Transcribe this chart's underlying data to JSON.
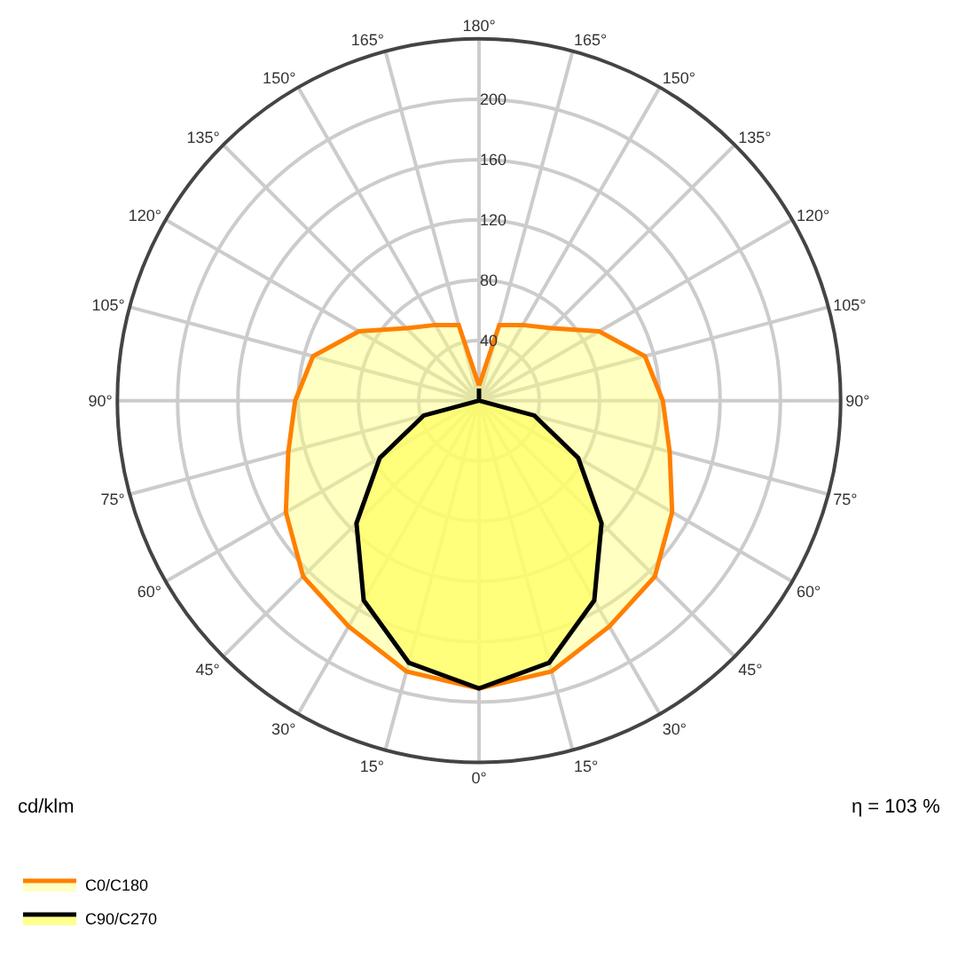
{
  "chart_data": {
    "type": "radar",
    "categories": [
      "180°",
      "165°",
      "150°",
      "135°",
      "120°",
      "105°",
      "90°",
      "75°",
      "60°",
      "45°",
      "30°",
      "15°",
      "0°",
      "15°",
      "30°",
      "45°",
      "60°",
      "75°",
      "90°",
      "105°",
      "120°",
      "135°",
      "150°",
      "165°"
    ],
    "series": [
      {
        "name": "C0/C180",
        "color": "#ff8000",
        "values": [
          10,
          52,
          58,
          68,
          92,
          114,
          122,
          131,
          148,
          165,
          173,
          186,
          191,
          186,
          173,
          165,
          148,
          131,
          122,
          114,
          92,
          68,
          58,
          52
        ]
      },
      {
        "name": "C90/C270",
        "color": "#000000",
        "values": [
          8,
          0,
          0,
          0,
          0,
          0,
          0,
          38,
          76,
          115,
          153,
          180,
          191,
          180,
          153,
          115,
          76,
          38,
          0,
          0,
          0,
          0,
          0,
          0
        ]
      }
    ],
    "ylim": [
      0,
      240
    ],
    "yticks": [
      40,
      80,
      120,
      160,
      200
    ],
    "grid": true,
    "legend": "bottom left",
    "annotations": [
      "cd/klm",
      "η = 103 %"
    ]
  }
}
